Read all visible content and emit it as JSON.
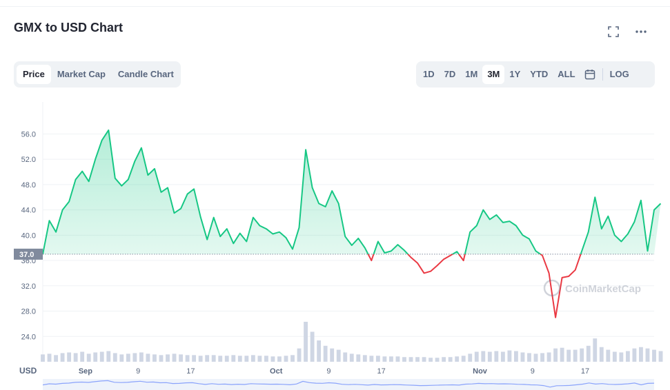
{
  "header": {
    "title": "GMX to USD Chart",
    "fullscreen_icon": "expand-icon",
    "more_icon": "more-horizontal-icon"
  },
  "tabs": [
    {
      "label": "Price",
      "active": true
    },
    {
      "label": "Market Cap",
      "active": false
    },
    {
      "label": "Candle Chart",
      "active": false
    }
  ],
  "ranges": [
    {
      "label": "1D",
      "active": false
    },
    {
      "label": "7D",
      "active": false
    },
    {
      "label": "1M",
      "active": false
    },
    {
      "label": "3M",
      "active": true
    },
    {
      "label": "1Y",
      "active": false
    },
    {
      "label": "YTD",
      "active": false
    },
    {
      "label": "ALL",
      "active": false
    }
  ],
  "calendar_icon": "calendar-icon",
  "log_label": "LOG",
  "watermark": "CoinMarketCap",
  "currency_label": "USD",
  "colors": {
    "up": "#16c784",
    "down": "#ea3943",
    "volume": "#cfd6e4",
    "reference": "#808a9d"
  },
  "chart_data": {
    "type": "area",
    "ylim": [
      20,
      58
    ],
    "y_ticks": [
      24.0,
      28.0,
      32.0,
      36.0,
      40.0,
      44.0,
      48.0,
      52.0,
      56.0
    ],
    "y_tick_labels": [
      "24.0",
      "28.0",
      "32.0",
      "36.0",
      "40.0",
      "44.0",
      "48.0",
      "52.0",
      "56.0"
    ],
    "x_tick_labels": [
      {
        "label": "Sep",
        "t": 6.5
      },
      {
        "label": "9",
        "t": 14.5
      },
      {
        "label": "17",
        "t": 22.5
      },
      {
        "label": "Oct",
        "t": 35.5
      },
      {
        "label": "9",
        "t": 43.5
      },
      {
        "label": "17",
        "t": 51.5
      },
      {
        "label": "Nov",
        "t": 66.5
      },
      {
        "label": "9",
        "t": 74.5
      },
      {
        "label": "17",
        "t": 82.5
      }
    ],
    "x_range": [
      0,
      93
    ],
    "reference_price": 37.0,
    "reference_label": "37.0",
    "series": [
      {
        "price": [
          37.0,
          42.3,
          40.5,
          44.0,
          45.3,
          48.8,
          50.1,
          48.5,
          52.0,
          55.0,
          56.6,
          49.0,
          47.8,
          48.8,
          51.7,
          53.8,
          49.5,
          50.5,
          46.8,
          47.5,
          43.5,
          44.2,
          46.5,
          47.3,
          42.9,
          39.3,
          42.8,
          39.8,
          41.0,
          38.7,
          40.3,
          39.0,
          42.8,
          41.5,
          41.0,
          40.2,
          40.5,
          39.6,
          37.8,
          41.2,
          53.5,
          47.5,
          45.0,
          44.5,
          47.0,
          45.0,
          39.8,
          38.4,
          39.5,
          38.0,
          36.0,
          39.0,
          37.2,
          37.5,
          38.5,
          37.6,
          36.5,
          35.6,
          34.0,
          34.3,
          35.2,
          36.2,
          36.8,
          37.4,
          36.0,
          40.5,
          41.5,
          44.0,
          42.5,
          43.2,
          42.0,
          42.2,
          41.5,
          40.0,
          39.4,
          37.5,
          36.8,
          34.0,
          27.0,
          33.3,
          33.5,
          34.5,
          37.5,
          40.5,
          46.0,
          41.0,
          43.0,
          40.0,
          39.0,
          40.2,
          42.1,
          45.5,
          37.5,
          44.0,
          45.0
        ],
        "volume": [
          1.1,
          1.2,
          1.0,
          1.3,
          1.4,
          1.3,
          1.5,
          1.2,
          1.4,
          1.5,
          1.6,
          1.3,
          1.1,
          1.2,
          1.3,
          1.4,
          1.2,
          1.1,
          1.0,
          1.1,
          1.2,
          1.1,
          1.0,
          1.0,
          0.9,
          1.0,
          1.0,
          0.9,
          0.9,
          1.0,
          0.9,
          0.9,
          1.0,
          0.9,
          0.9,
          0.8,
          0.8,
          0.9,
          1.0,
          2.0,
          6.0,
          4.5,
          3.2,
          2.4,
          2.0,
          1.8,
          1.4,
          1.2,
          1.1,
          1.0,
          0.9,
          0.9,
          0.8,
          0.8,
          0.8,
          0.7,
          0.7,
          0.7,
          0.7,
          0.6,
          0.6,
          0.7,
          0.7,
          0.8,
          0.9,
          1.2,
          1.5,
          1.6,
          1.5,
          1.6,
          1.5,
          1.7,
          1.6,
          1.4,
          1.3,
          1.2,
          1.3,
          1.4,
          2.0,
          2.1,
          1.8,
          1.8,
          2.0,
          2.4,
          3.5,
          2.2,
          1.8,
          1.5,
          1.4,
          1.6,
          2.0,
          2.2,
          2.0,
          1.8,
          1.6
        ]
      }
    ]
  }
}
